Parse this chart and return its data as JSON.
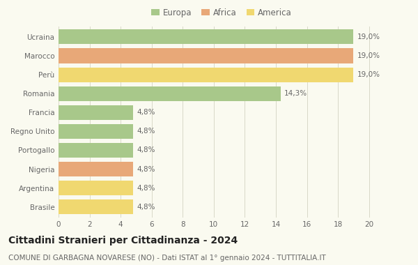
{
  "categories": [
    "Ucraina",
    "Marocco",
    "Perù",
    "Romania",
    "Francia",
    "Regno Unito",
    "Portogallo",
    "Nigeria",
    "Argentina",
    "Brasile"
  ],
  "values": [
    19.0,
    19.0,
    19.0,
    14.3,
    4.8,
    4.8,
    4.8,
    4.8,
    4.8,
    4.8
  ],
  "labels": [
    "19,0%",
    "19,0%",
    "19,0%",
    "14,3%",
    "4,8%",
    "4,8%",
    "4,8%",
    "4,8%",
    "4,8%",
    "4,8%"
  ],
  "colors": [
    "#a8c88a",
    "#e8a878",
    "#f0d870",
    "#a8c88a",
    "#a8c88a",
    "#a8c88a",
    "#a8c88a",
    "#e8a878",
    "#f0d870",
    "#f0d870"
  ],
  "legend": [
    {
      "label": "Europa",
      "color": "#a8c88a"
    },
    {
      "label": "Africa",
      "color": "#e8a878"
    },
    {
      "label": "America",
      "color": "#f0d870"
    }
  ],
  "xlim": [
    0,
    21
  ],
  "xticks": [
    0,
    2,
    4,
    6,
    8,
    10,
    12,
    14,
    16,
    18,
    20
  ],
  "title": "Cittadini Stranieri per Cittadinanza - 2024",
  "subtitle": "COMUNE DI GARBAGNA NOVARESE (NO) - Dati ISTAT al 1° gennaio 2024 - TUTTITALIA.IT",
  "background_color": "#fafaf0",
  "grid_color": "#d8d8c8",
  "bar_height": 0.78,
  "title_fontsize": 10,
  "subtitle_fontsize": 7.5,
  "label_fontsize": 7.5,
  "tick_fontsize": 7.5,
  "legend_fontsize": 8.5
}
